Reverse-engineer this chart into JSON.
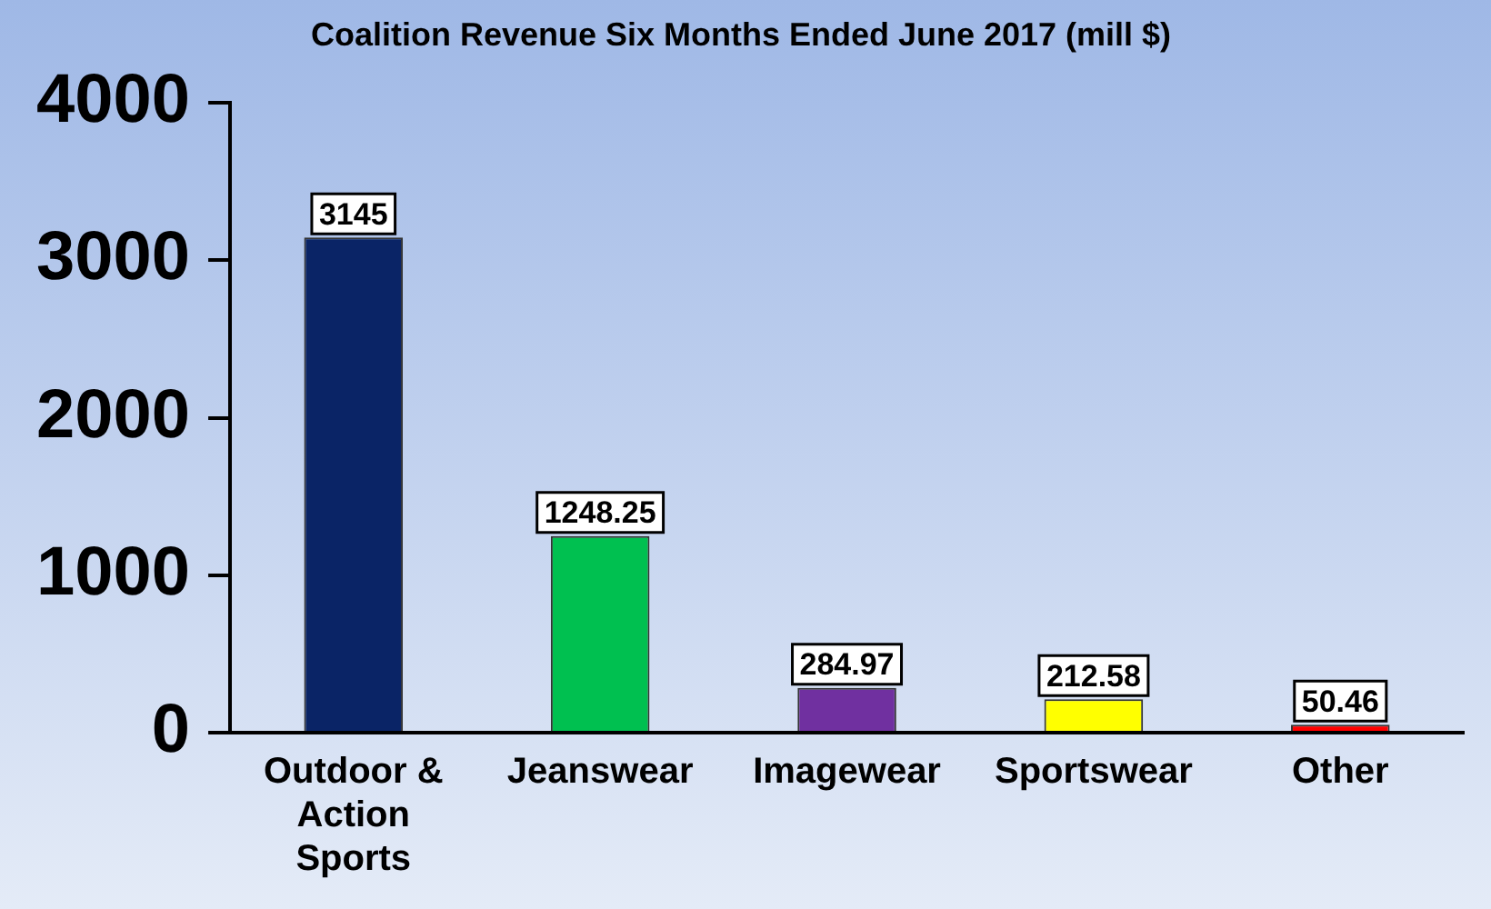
{
  "chart_data": {
    "type": "bar",
    "title": "Coalition Revenue Six Months Ended June 2017 (mill $)",
    "categories": [
      "Outdoor & Action Sports",
      "Jeanswear",
      "Imagewear",
      "Sportswear",
      "Other"
    ],
    "values": [
      3145,
      1248.25,
      284.97,
      212.58,
      50.46
    ],
    "colors": [
      "#0a2466",
      "#00c050",
      "#7030a0",
      "#ffff00",
      "#ff0000"
    ],
    "ylim": [
      0,
      4000
    ],
    "yticks": [
      0,
      1000,
      2000,
      3000,
      4000
    ],
    "grid": false,
    "legend": false,
    "data_labels": true
  }
}
